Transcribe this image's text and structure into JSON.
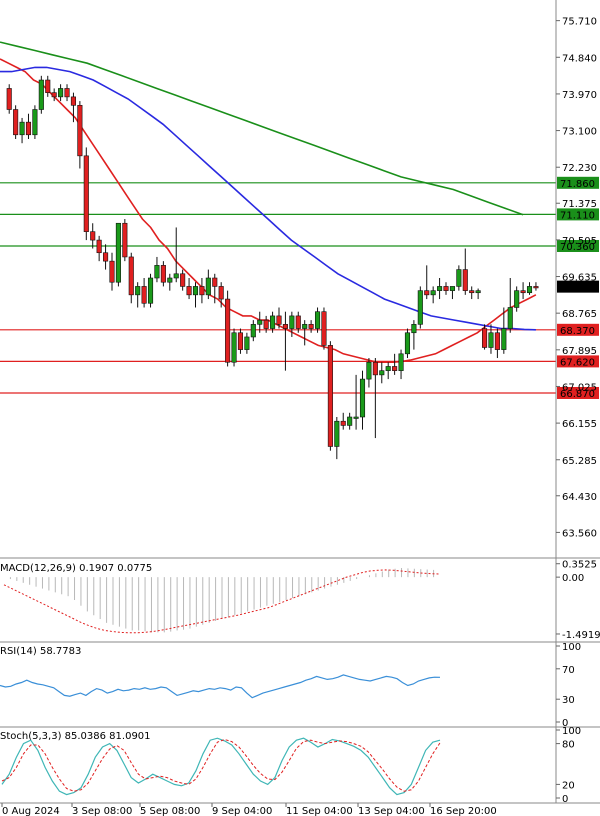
{
  "chart_data": [
    {
      "panel": "price",
      "type": "candlestick",
      "ylim": [
        63.0,
        76.2
      ],
      "y_ticks": [
        "75.710",
        "74.840",
        "73.970",
        "73.100",
        "72.230",
        "71.375",
        "70.505",
        "69.635",
        "68.765",
        "67.895",
        "67.025",
        "66.155",
        "65.285",
        "64.430",
        "63.560"
      ],
      "x_tick_labels": [
        "0 Aug 2024",
        "3 Sep 08:00",
        "5 Sep 08:00",
        "9 Sep 04:00",
        "11 Sep 04:00",
        "13 Sep 04:00",
        "16 Sep 20:00"
      ],
      "current_price_label": "69.395",
      "levels": [
        {
          "label": "71.860",
          "value": 71.86,
          "color": "#1a8f1a"
        },
        {
          "label": "71.110",
          "value": 71.11,
          "color": "#1a8f1a"
        },
        {
          "label": "70.360",
          "value": 70.36,
          "color": "#1a8f1a"
        },
        {
          "label": "68.370",
          "value": 68.37,
          "color": "#e02020"
        },
        {
          "label": "67.620",
          "value": 67.62,
          "color": "#e02020"
        },
        {
          "label": "66.870",
          "value": 66.87,
          "color": "#e02020"
        }
      ],
      "candles": [
        {
          "o": 74.1,
          "h": 74.2,
          "l": 73.5,
          "c": 73.6
        },
        {
          "o": 73.6,
          "h": 73.7,
          "l": 72.9,
          "c": 73.0
        },
        {
          "o": 73.0,
          "h": 73.4,
          "l": 72.8,
          "c": 73.3
        },
        {
          "o": 73.3,
          "h": 73.5,
          "l": 72.9,
          "c": 73.0
        },
        {
          "o": 73.0,
          "h": 73.7,
          "l": 72.9,
          "c": 73.6
        },
        {
          "o": 73.6,
          "h": 74.4,
          "l": 73.5,
          "c": 74.3
        },
        {
          "o": 74.3,
          "h": 74.4,
          "l": 73.9,
          "c": 74.0
        },
        {
          "o": 74.0,
          "h": 74.1,
          "l": 73.8,
          "c": 73.9
        },
        {
          "o": 73.9,
          "h": 74.2,
          "l": 73.8,
          "c": 74.1
        },
        {
          "o": 74.1,
          "h": 74.2,
          "l": 73.8,
          "c": 73.9
        },
        {
          "o": 73.9,
          "h": 74.0,
          "l": 73.3,
          "c": 73.7
        },
        {
          "o": 73.7,
          "h": 73.8,
          "l": 72.2,
          "c": 72.5
        },
        {
          "o": 72.5,
          "h": 72.7,
          "l": 70.5,
          "c": 70.7
        },
        {
          "o": 70.7,
          "h": 70.9,
          "l": 70.3,
          "c": 70.5
        },
        {
          "o": 70.5,
          "h": 70.6,
          "l": 70.0,
          "c": 70.2
        },
        {
          "o": 70.2,
          "h": 70.4,
          "l": 69.8,
          "c": 70.0
        },
        {
          "o": 70.0,
          "h": 70.2,
          "l": 69.3,
          "c": 69.5
        },
        {
          "o": 69.5,
          "h": 70.9,
          "l": 69.4,
          "c": 70.9
        },
        {
          "o": 70.9,
          "h": 71.0,
          "l": 70.0,
          "c": 70.1
        },
        {
          "o": 70.1,
          "h": 70.2,
          "l": 69.0,
          "c": 69.2
        },
        {
          "o": 69.2,
          "h": 69.5,
          "l": 68.9,
          "c": 69.4
        },
        {
          "o": 69.4,
          "h": 69.6,
          "l": 68.9,
          "c": 69.0
        },
        {
          "o": 69.0,
          "h": 69.7,
          "l": 68.9,
          "c": 69.6
        },
        {
          "o": 69.6,
          "h": 70.1,
          "l": 69.5,
          "c": 69.9
        },
        {
          "o": 69.9,
          "h": 70.0,
          "l": 69.4,
          "c": 69.5
        },
        {
          "o": 69.5,
          "h": 69.7,
          "l": 69.3,
          "c": 69.6
        },
        {
          "o": 69.6,
          "h": 70.8,
          "l": 69.5,
          "c": 69.7
        },
        {
          "o": 69.7,
          "h": 69.8,
          "l": 69.3,
          "c": 69.4
        },
        {
          "o": 69.4,
          "h": 69.6,
          "l": 69.1,
          "c": 69.2
        },
        {
          "o": 69.2,
          "h": 69.5,
          "l": 68.9,
          "c": 69.4
        },
        {
          "o": 69.4,
          "h": 69.6,
          "l": 69.0,
          "c": 69.2
        },
        {
          "o": 69.2,
          "h": 69.8,
          "l": 69.1,
          "c": 69.6
        },
        {
          "o": 69.6,
          "h": 69.7,
          "l": 69.0,
          "c": 69.4
        },
        {
          "o": 69.4,
          "h": 69.5,
          "l": 68.9,
          "c": 69.1
        },
        {
          "o": 69.1,
          "h": 69.3,
          "l": 67.5,
          "c": 67.6
        },
        {
          "o": 67.6,
          "h": 68.4,
          "l": 67.5,
          "c": 68.3
        },
        {
          "o": 68.3,
          "h": 68.4,
          "l": 67.8,
          "c": 67.9
        },
        {
          "o": 67.9,
          "h": 68.3,
          "l": 67.8,
          "c": 68.2
        },
        {
          "o": 68.2,
          "h": 68.6,
          "l": 68.1,
          "c": 68.5
        },
        {
          "o": 68.5,
          "h": 68.8,
          "l": 68.3,
          "c": 68.6
        },
        {
          "o": 68.6,
          "h": 68.7,
          "l": 68.3,
          "c": 68.4
        },
        {
          "o": 68.4,
          "h": 68.8,
          "l": 68.3,
          "c": 68.7
        },
        {
          "o": 68.7,
          "h": 68.9,
          "l": 68.4,
          "c": 68.5
        },
        {
          "o": 68.5,
          "h": 68.8,
          "l": 67.4,
          "c": 68.4
        },
        {
          "o": 68.4,
          "h": 68.8,
          "l": 68.2,
          "c": 68.7
        },
        {
          "o": 68.7,
          "h": 68.8,
          "l": 68.3,
          "c": 68.4
        },
        {
          "o": 68.4,
          "h": 68.6,
          "l": 68.0,
          "c": 68.5
        },
        {
          "o": 68.5,
          "h": 68.6,
          "l": 68.3,
          "c": 68.4
        },
        {
          "o": 68.4,
          "h": 68.9,
          "l": 68.3,
          "c": 68.8
        },
        {
          "o": 68.8,
          "h": 68.9,
          "l": 67.9,
          "c": 68.0
        },
        {
          "o": 68.0,
          "h": 68.1,
          "l": 65.5,
          "c": 65.6
        },
        {
          "o": 65.6,
          "h": 66.3,
          "l": 65.3,
          "c": 66.2
        },
        {
          "o": 66.2,
          "h": 66.4,
          "l": 66.0,
          "c": 66.1
        },
        {
          "o": 66.1,
          "h": 66.4,
          "l": 66.0,
          "c": 66.3
        },
        {
          "o": 66.3,
          "h": 67.3,
          "l": 66.0,
          "c": 66.3
        },
        {
          "o": 66.3,
          "h": 67.4,
          "l": 66.0,
          "c": 67.2
        },
        {
          "o": 67.2,
          "h": 67.7,
          "l": 67.0,
          "c": 67.6
        },
        {
          "o": 67.6,
          "h": 67.7,
          "l": 65.8,
          "c": 67.3
        },
        {
          "o": 67.3,
          "h": 67.6,
          "l": 67.1,
          "c": 67.4
        },
        {
          "o": 67.4,
          "h": 67.6,
          "l": 67.2,
          "c": 67.5
        },
        {
          "o": 67.5,
          "h": 67.8,
          "l": 67.3,
          "c": 67.4
        },
        {
          "o": 67.4,
          "h": 67.9,
          "l": 67.2,
          "c": 67.8
        },
        {
          "o": 67.8,
          "h": 68.4,
          "l": 67.7,
          "c": 68.3
        },
        {
          "o": 68.3,
          "h": 68.6,
          "l": 67.9,
          "c": 68.5
        },
        {
          "o": 68.5,
          "h": 69.4,
          "l": 68.4,
          "c": 69.3
        },
        {
          "o": 69.3,
          "h": 69.9,
          "l": 69.1,
          "c": 69.2
        },
        {
          "o": 69.2,
          "h": 69.4,
          "l": 69.0,
          "c": 69.3
        },
        {
          "o": 69.3,
          "h": 69.6,
          "l": 69.1,
          "c": 69.4
        },
        {
          "o": 69.4,
          "h": 69.5,
          "l": 69.2,
          "c": 69.3
        },
        {
          "o": 69.3,
          "h": 69.4,
          "l": 69.1,
          "c": 69.4
        },
        {
          "o": 69.4,
          "h": 69.9,
          "l": 69.3,
          "c": 69.8
        },
        {
          "o": 69.8,
          "h": 70.3,
          "l": 69.2,
          "c": 69.3
        },
        {
          "o": 69.3,
          "h": 69.4,
          "l": 69.1,
          "c": 69.25
        },
        {
          "o": 69.25,
          "h": 69.35,
          "l": 69.1,
          "c": 69.3
        },
        {
          "o": 68.4,
          "h": 68.5,
          "l": 67.9,
          "c": 67.95
        },
        {
          "o": 67.95,
          "h": 68.5,
          "l": 67.8,
          "c": 68.3
        },
        {
          "o": 68.3,
          "h": 68.4,
          "l": 67.7,
          "c": 67.9
        },
        {
          "o": 67.9,
          "h": 68.9,
          "l": 67.8,
          "c": 68.4
        },
        {
          "o": 68.4,
          "h": 69.6,
          "l": 68.3,
          "c": 68.9
        },
        {
          "o": 68.9,
          "h": 69.4,
          "l": 68.8,
          "c": 69.3
        },
        {
          "o": 69.3,
          "h": 69.5,
          "l": 69.1,
          "c": 69.25
        },
        {
          "o": 69.25,
          "h": 69.5,
          "l": 69.2,
          "c": 69.4
        },
        {
          "o": 69.4,
          "h": 69.5,
          "l": 69.3,
          "c": 69.395
        }
      ],
      "ma_series": [
        {
          "color": "#e02020",
          "values": [
            74.8,
            74.7,
            74.6,
            74.5,
            74.3,
            74.2,
            74.0,
            73.8,
            73.6,
            73.4,
            73.1,
            72.8,
            72.5,
            72.2,
            71.9,
            71.6,
            71.3,
            71.0,
            70.8,
            70.5,
            70.3,
            70.0,
            69.8,
            69.6,
            69.4,
            69.2,
            69.1,
            68.9,
            68.8,
            68.7,
            68.7,
            68.6,
            68.6,
            68.5,
            68.4,
            68.3,
            68.2,
            68.1,
            68.0,
            67.95,
            67.9,
            67.8,
            67.75,
            67.7,
            67.65,
            67.6,
            67.6,
            67.6,
            67.62,
            67.65,
            67.7,
            67.75,
            67.8,
            67.9,
            68.0,
            68.1,
            68.2,
            68.3,
            68.45,
            68.6,
            68.75,
            68.9,
            69.0,
            69.1,
            69.2
          ]
        },
        {
          "color": "#2a2ae0",
          "values": [
            74.5,
            74.5,
            74.55,
            74.6,
            74.6,
            74.55,
            74.5,
            74.4,
            74.3,
            74.15,
            74.0,
            73.85,
            73.65,
            73.45,
            73.25,
            73.0,
            72.75,
            72.5,
            72.25,
            72.0,
            71.75,
            71.5,
            71.25,
            71.0,
            70.75,
            70.5,
            70.3,
            70.1,
            69.9,
            69.7,
            69.55,
            69.4,
            69.25,
            69.1,
            69.0,
            68.9,
            68.8,
            68.7,
            68.65,
            68.6,
            68.55,
            68.5,
            68.45,
            68.4,
            68.4,
            68.38,
            68.37
          ]
        },
        {
          "color": "#1a8f1a",
          "values": [
            75.2,
            75.1,
            75.0,
            74.9,
            74.8,
            74.7,
            74.55,
            74.4,
            74.25,
            74.1,
            73.95,
            73.8,
            73.65,
            73.5,
            73.35,
            73.2,
            73.05,
            72.9,
            72.75,
            72.6,
            72.45,
            72.3,
            72.15,
            72.0,
            71.9,
            71.8,
            71.7,
            71.55,
            71.4,
            71.25,
            71.1
          ]
        }
      ]
    },
    {
      "panel": "macd",
      "type": "histogram+line",
      "title": "MACD(12,26,9) 0.1907 0.0775",
      "ylim": [
        -1.65,
        0.45
      ],
      "y_ticks": [
        "0.3525",
        "0.00",
        "-1.4919"
      ],
      "histogram": [
        0.0,
        -0.05,
        -0.1,
        -0.15,
        -0.2,
        -0.25,
        -0.3,
        -0.35,
        -0.4,
        -0.45,
        -0.5,
        -0.6,
        -0.75,
        -0.9,
        -1.0,
        -1.1,
        -1.2,
        -1.25,
        -1.3,
        -1.35,
        -1.4,
        -1.4,
        -1.42,
        -1.45,
        -1.45,
        -1.45,
        -1.43,
        -1.4,
        -1.38,
        -1.35,
        -1.3,
        -1.25,
        -1.2,
        -1.15,
        -1.1,
        -1.05,
        -1.0,
        -0.95,
        -0.9,
        -0.85,
        -0.8,
        -0.75,
        -0.7,
        -0.65,
        -0.6,
        -0.55,
        -0.5,
        -0.45,
        -0.4,
        -0.35,
        -0.3,
        -0.25,
        -0.2,
        -0.15,
        -0.1,
        -0.05,
        0.0,
        0.05,
        0.1,
        0.15,
        0.2,
        0.22,
        0.24,
        0.23,
        0.22,
        0.21,
        0.2,
        0.19
      ],
      "signal": [
        -0.2,
        -0.3,
        -0.4,
        -0.5,
        -0.6,
        -0.7,
        -0.8,
        -0.9,
        -1.0,
        -1.1,
        -1.2,
        -1.28,
        -1.35,
        -1.4,
        -1.43,
        -1.45,
        -1.46,
        -1.46,
        -1.45,
        -1.43,
        -1.4,
        -1.36,
        -1.32,
        -1.28,
        -1.24,
        -1.2,
        -1.16,
        -1.12,
        -1.08,
        -1.04,
        -1.0,
        -0.95,
        -0.9,
        -0.85,
        -0.8,
        -0.72,
        -0.64,
        -0.56,
        -0.48,
        -0.4,
        -0.32,
        -0.24,
        -0.16,
        -0.08,
        0.0,
        0.06,
        0.12,
        0.16,
        0.18,
        0.19,
        0.18,
        0.16,
        0.14,
        0.12,
        0.1,
        0.09,
        0.08
      ]
    },
    {
      "panel": "rsi",
      "type": "line",
      "title": "RSI(14) 58.7783",
      "ylim": [
        0,
        100
      ],
      "y_ticks": [
        "100",
        "70",
        "30",
        "0"
      ],
      "values": [
        48,
        46,
        47,
        50,
        52,
        55,
        52,
        50,
        49,
        47,
        45,
        40,
        35,
        34,
        36,
        38,
        35,
        40,
        44,
        42,
        38,
        40,
        43,
        41,
        42,
        44,
        43,
        45,
        43,
        44,
        46,
        45,
        40,
        35,
        37,
        39,
        41,
        40,
        42,
        44,
        43,
        45,
        44,
        42,
        46,
        45,
        38,
        32,
        35,
        38,
        40,
        42,
        44,
        46,
        48,
        50,
        52,
        55,
        57,
        60,
        58,
        56,
        57,
        59,
        62,
        60,
        58,
        56,
        55,
        54,
        56,
        58,
        60,
        59,
        57,
        52,
        48,
        50,
        54,
        56,
        58,
        59,
        58.78
      ]
    },
    {
      "panel": "stoch",
      "type": "line",
      "title": "Stoch(5,3,3) 85.0386 81.0901",
      "ylim": [
        0,
        100
      ],
      "y_ticks": [
        "100",
        "80",
        "20",
        "0"
      ],
      "k_values": [
        20,
        35,
        60,
        80,
        85,
        70,
        45,
        25,
        10,
        5,
        8,
        15,
        35,
        60,
        75,
        80,
        70,
        50,
        30,
        22,
        28,
        35,
        30,
        25,
        20,
        18,
        22,
        40,
        65,
        85,
        88,
        84,
        78,
        65,
        50,
        35,
        25,
        20,
        30,
        55,
        75,
        85,
        88,
        82,
        75,
        80,
        86,
        84,
        80,
        76,
        70,
        60,
        45,
        30,
        15,
        5,
        8,
        20,
        45,
        70,
        82,
        85.04
      ],
      "d_values": [
        25,
        30,
        45,
        65,
        78,
        78,
        65,
        45,
        28,
        14,
        10,
        12,
        22,
        40,
        58,
        72,
        77,
        70,
        52,
        35,
        28,
        30,
        32,
        30,
        25,
        22,
        20,
        28,
        45,
        65,
        82,
        86,
        83,
        75,
        62,
        48,
        36,
        28,
        27,
        38,
        55,
        73,
        83,
        85,
        82,
        80,
        82,
        84,
        83,
        80,
        76,
        68,
        55,
        42,
        28,
        16,
        10,
        12,
        25,
        45,
        65,
        81.09
      ]
    }
  ]
}
